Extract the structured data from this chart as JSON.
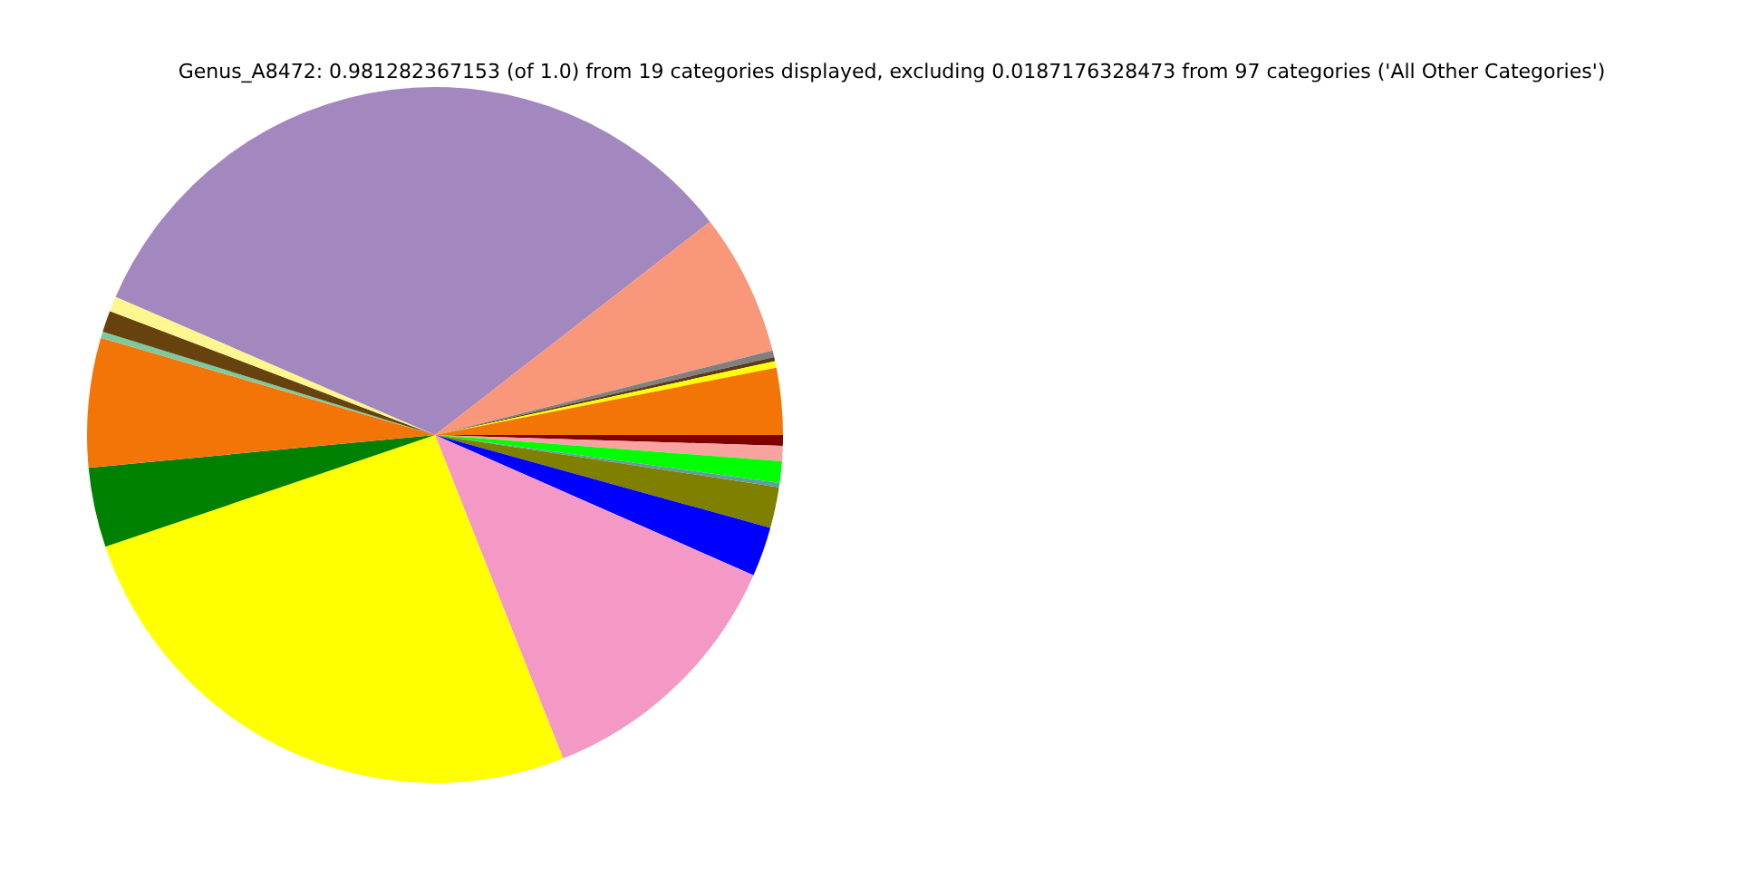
{
  "chart_data": {
    "type": "pie",
    "title": "Genus_A8472: 0.981282367153 (of 1.0) from 19 categories displayed, excluding 0.0187176328473 from 97 categories ('All Other Categories')",
    "categories": [
      null,
      null,
      null,
      null,
      null,
      null,
      null,
      null,
      null,
      null,
      null,
      null,
      null,
      null,
      null,
      null,
      null,
      null,
      null
    ],
    "values": [
      0.5,
      0.7,
      1.0,
      0.2,
      1.9,
      2.3,
      12.4,
      25.8,
      3.7,
      6.0,
      0.3,
      1.0,
      0.7,
      33.0,
      6.6,
      0.3,
      0.2,
      0.3,
      3.1
    ],
    "colors": [
      "#800000",
      "#f9a3a0",
      "#00ff00",
      "#5f9ea0",
      "#808000",
      "#0000ff",
      "#f499c5",
      "#ffff00",
      "#008000",
      "#f47507",
      "#7fc99f",
      "#65420e",
      "#fff68f",
      "#a387bf",
      "#f8977a",
      "#808080",
      "#5c3a1a",
      "#ffff00",
      "#f47507"
    ]
  }
}
